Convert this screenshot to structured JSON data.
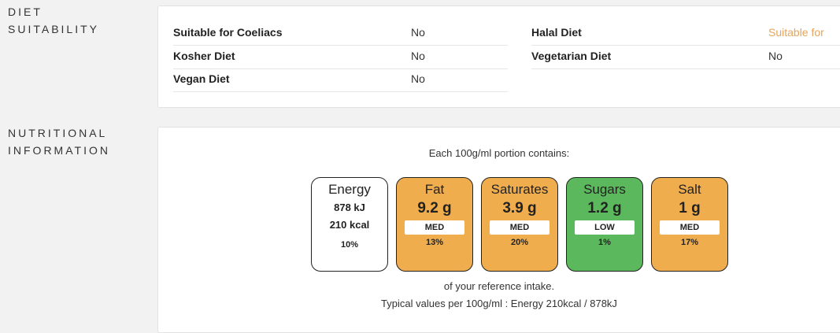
{
  "diet": {
    "section_label_line1": "DIET",
    "section_label_line2": "SUITABILITY",
    "rows": [
      {
        "label": "Suitable for Coeliacs",
        "value": "No"
      },
      {
        "label": "Kosher Diet",
        "value": "No"
      },
      {
        "label": "Vegan Diet",
        "value": "No"
      },
      {
        "label": "Halal Diet",
        "value": "Suitable for"
      },
      {
        "label": "Vegetarian Diet",
        "value": "No"
      }
    ]
  },
  "nutrition": {
    "section_label_line1": "NUTRITIONAL",
    "section_label_line2": "INFORMATION",
    "portion_text": "Each 100g/ml portion contains:",
    "energy": {
      "name": "Energy",
      "kj": "878 kJ",
      "kcal": "210 kcal",
      "pct": "10%"
    },
    "nutrients": [
      {
        "name": "Fat",
        "amount": "9.2 g",
        "level": "MED",
        "pct": "13%",
        "color": "#f0ad4e"
      },
      {
        "name": "Saturates",
        "amount": "3.9 g",
        "level": "MED",
        "pct": "20%",
        "color": "#f0ad4e"
      },
      {
        "name": "Sugars",
        "amount": "1.2 g",
        "level": "LOW",
        "pct": "1%",
        "color": "#5cb85c"
      },
      {
        "name": "Salt",
        "amount": "1 g",
        "level": "MED",
        "pct": "17%",
        "color": "#f0ad4e"
      }
    ],
    "reference_text": "of your reference intake.",
    "typical_text": "Typical values per 100g/ml : Energy 210kcal / 878kJ"
  }
}
